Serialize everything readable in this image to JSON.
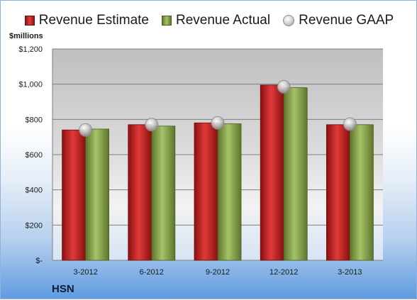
{
  "unit_label": "$millions",
  "company": "HSN",
  "colors": {
    "estimate": "#cc2222",
    "actual": "#8faa4c",
    "gaap": "#c8c8c8"
  },
  "chart_data": {
    "type": "bar",
    "categories": [
      "3-2012",
      "6-2012",
      "9-2012",
      "12-2012",
      "3-2013"
    ],
    "series": [
      {
        "name": "Revenue Estimate",
        "values": [
          740,
          770,
          780,
          995,
          770
        ]
      },
      {
        "name": "Revenue Actual",
        "values": [
          745,
          762,
          775,
          980,
          770
        ]
      },
      {
        "name": "Revenue GAAP",
        "values": [
          740,
          770,
          780,
          985,
          773
        ],
        "style": "marker"
      }
    ],
    "ylim": [
      0,
      1200
    ],
    "yticks": [
      0,
      200,
      400,
      600,
      800,
      1000,
      1200
    ],
    "ytick_labels": [
      "$-",
      "$200",
      "$400",
      "$600",
      "$800",
      "$1,000",
      "$1,200"
    ],
    "legend_position": "top",
    "grid": true
  }
}
